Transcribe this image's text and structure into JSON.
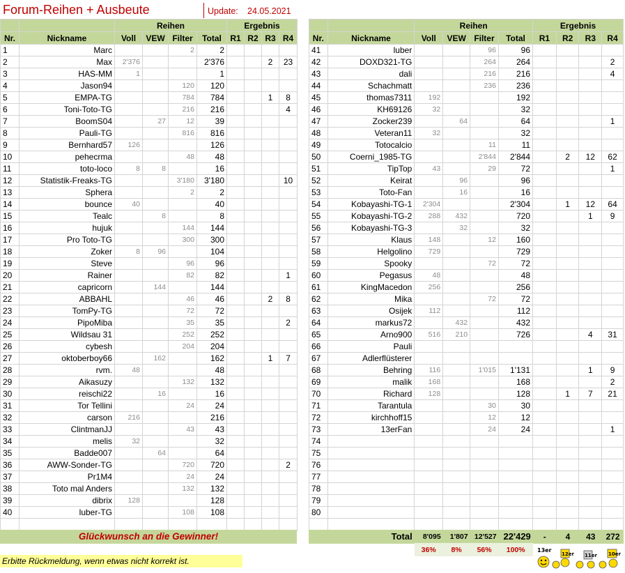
{
  "header": {
    "title": "Forum-Reihen + Ausbeute",
    "update_label": "Update:",
    "update_date": "24.05.2021"
  },
  "columns": {
    "group_reihen": "Reihen",
    "group_ergebnis": "Ergebnis",
    "nr": "Nr.",
    "nickname": "Nickname",
    "voll": "Voll",
    "vew": "VEW",
    "filter": "Filter",
    "total": "Total",
    "r1": "R1",
    "r2": "R2",
    "r3": "R3",
    "r4": "R4"
  },
  "rows": [
    {
      "nr": "1",
      "nick": "Marc",
      "voll": "",
      "vew": "",
      "filter": "2",
      "total": "2",
      "r1": "",
      "r2": "",
      "r3": "",
      "r4": ""
    },
    {
      "nr": "2",
      "nick": "Max",
      "voll": "2'376",
      "vew": "",
      "filter": "",
      "total": "2'376",
      "r1": "",
      "r2": "",
      "r3": "2",
      "r4": "23"
    },
    {
      "nr": "3",
      "nick": "HAS-MM",
      "voll": "1",
      "vew": "",
      "filter": "",
      "total": "1",
      "r1": "",
      "r2": "",
      "r3": "",
      "r4": ""
    },
    {
      "nr": "4",
      "nick": "Jason94",
      "voll": "",
      "vew": "",
      "filter": "120",
      "total": "120",
      "r1": "",
      "r2": "",
      "r3": "",
      "r4": ""
    },
    {
      "nr": "5",
      "nick": "EMPA-TG",
      "voll": "",
      "vew": "",
      "filter": "784",
      "total": "784",
      "r1": "",
      "r2": "",
      "r3": "1",
      "r4": "8"
    },
    {
      "nr": "6",
      "nick": "Toni-Toto-TG",
      "voll": "",
      "vew": "",
      "filter": "216",
      "total": "216",
      "r1": "",
      "r2": "",
      "r3": "",
      "r4": "4"
    },
    {
      "nr": "7",
      "nick": "BoomS04",
      "voll": "",
      "vew": "27",
      "filter": "12",
      "total": "39",
      "r1": "",
      "r2": "",
      "r3": "",
      "r4": ""
    },
    {
      "nr": "8",
      "nick": "Pauli-TG",
      "voll": "",
      "vew": "",
      "filter": "816",
      "total": "816",
      "r1": "",
      "r2": "",
      "r3": "",
      "r4": ""
    },
    {
      "nr": "9",
      "nick": "Bernhard57",
      "voll": "126",
      "vew": "",
      "filter": "",
      "total": "126",
      "r1": "",
      "r2": "",
      "r3": "",
      "r4": ""
    },
    {
      "nr": "10",
      "nick": "pehecrma",
      "voll": "",
      "vew": "",
      "filter": "48",
      "total": "48",
      "r1": "",
      "r2": "",
      "r3": "",
      "r4": ""
    },
    {
      "nr": "11",
      "nick": "toto-loco",
      "voll": "8",
      "vew": "8",
      "filter": "",
      "total": "16",
      "r1": "",
      "r2": "",
      "r3": "",
      "r4": ""
    },
    {
      "nr": "12",
      "nick": "Statistik-Freaks-TG",
      "voll": "",
      "vew": "",
      "filter": "3'180",
      "total": "3'180",
      "r1": "",
      "r2": "",
      "r3": "",
      "r4": "10"
    },
    {
      "nr": "13",
      "nick": "Sphera",
      "voll": "",
      "vew": "",
      "filter": "2",
      "total": "2",
      "r1": "",
      "r2": "",
      "r3": "",
      "r4": ""
    },
    {
      "nr": "14",
      "nick": "bounce",
      "voll": "40",
      "vew": "",
      "filter": "",
      "total": "40",
      "r1": "",
      "r2": "",
      "r3": "",
      "r4": ""
    },
    {
      "nr": "15",
      "nick": "Tealc",
      "voll": "",
      "vew": "8",
      "filter": "",
      "total": "8",
      "r1": "",
      "r2": "",
      "r3": "",
      "r4": ""
    },
    {
      "nr": "16",
      "nick": "hujuk",
      "voll": "",
      "vew": "",
      "filter": "144",
      "total": "144",
      "r1": "",
      "r2": "",
      "r3": "",
      "r4": ""
    },
    {
      "nr": "17",
      "nick": "Pro Toto-TG",
      "voll": "",
      "vew": "",
      "filter": "300",
      "total": "300",
      "r1": "",
      "r2": "",
      "r3": "",
      "r4": ""
    },
    {
      "nr": "18",
      "nick": "Zoker",
      "voll": "8",
      "vew": "96",
      "filter": "",
      "total": "104",
      "r1": "",
      "r2": "",
      "r3": "",
      "r4": ""
    },
    {
      "nr": "19",
      "nick": "Steve",
      "voll": "",
      "vew": "",
      "filter": "96",
      "total": "96",
      "r1": "",
      "r2": "",
      "r3": "",
      "r4": ""
    },
    {
      "nr": "20",
      "nick": "Rainer",
      "voll": "",
      "vew": "",
      "filter": "82",
      "total": "82",
      "r1": "",
      "r2": "",
      "r3": "",
      "r4": "1"
    },
    {
      "nr": "21",
      "nick": "capricorn",
      "voll": "",
      "vew": "144",
      "filter": "",
      "total": "144",
      "r1": "",
      "r2": "",
      "r3": "",
      "r4": ""
    },
    {
      "nr": "22",
      "nick": "ABBAHL",
      "voll": "",
      "vew": "",
      "filter": "46",
      "total": "46",
      "r1": "",
      "r2": "",
      "r3": "2",
      "r4": "8"
    },
    {
      "nr": "23",
      "nick": "TomPy-TG",
      "voll": "",
      "vew": "",
      "filter": "72",
      "total": "72",
      "r1": "",
      "r2": "",
      "r3": "",
      "r4": ""
    },
    {
      "nr": "24",
      "nick": "PipoMiba",
      "voll": "",
      "vew": "",
      "filter": "35",
      "total": "35",
      "r1": "",
      "r2": "",
      "r3": "",
      "r4": "2"
    },
    {
      "nr": "25",
      "nick": "Wildsau 31",
      "voll": "",
      "vew": "",
      "filter": "252",
      "total": "252",
      "r1": "",
      "r2": "",
      "r3": "",
      "r4": ""
    },
    {
      "nr": "26",
      "nick": "cybesh",
      "voll": "",
      "vew": "",
      "filter": "204",
      "total": "204",
      "r1": "",
      "r2": "",
      "r3": "",
      "r4": ""
    },
    {
      "nr": "27",
      "nick": "oktoberboy66",
      "voll": "",
      "vew": "162",
      "filter": "",
      "total": "162",
      "r1": "",
      "r2": "",
      "r3": "1",
      "r4": "7"
    },
    {
      "nr": "28",
      "nick": "rvm.",
      "voll": "48",
      "vew": "",
      "filter": "",
      "total": "48",
      "r1": "",
      "r2": "",
      "r3": "",
      "r4": ""
    },
    {
      "nr": "29",
      "nick": "Aikasuzy",
      "voll": "",
      "vew": "",
      "filter": "132",
      "total": "132",
      "r1": "",
      "r2": "",
      "r3": "",
      "r4": ""
    },
    {
      "nr": "30",
      "nick": "reischi22",
      "voll": "",
      "vew": "16",
      "filter": "",
      "total": "16",
      "r1": "",
      "r2": "",
      "r3": "",
      "r4": ""
    },
    {
      "nr": "31",
      "nick": "Tor Tellini",
      "voll": "",
      "vew": "",
      "filter": "24",
      "total": "24",
      "r1": "",
      "r2": "",
      "r3": "",
      "r4": ""
    },
    {
      "nr": "32",
      "nick": "carson",
      "voll": "216",
      "vew": "",
      "filter": "",
      "total": "216",
      "r1": "",
      "r2": "",
      "r3": "",
      "r4": ""
    },
    {
      "nr": "33",
      "nick": "ClintmanJJ",
      "voll": "",
      "vew": "",
      "filter": "43",
      "total": "43",
      "r1": "",
      "r2": "",
      "r3": "",
      "r4": ""
    },
    {
      "nr": "34",
      "nick": "melis",
      "voll": "32",
      "vew": "",
      "filter": "",
      "total": "32",
      "r1": "",
      "r2": "",
      "r3": "",
      "r4": ""
    },
    {
      "nr": "35",
      "nick": "Badde007",
      "voll": "",
      "vew": "64",
      "filter": "",
      "total": "64",
      "r1": "",
      "r2": "",
      "r3": "",
      "r4": ""
    },
    {
      "nr": "36",
      "nick": "AWW-Sonder-TG",
      "voll": "",
      "vew": "",
      "filter": "720",
      "total": "720",
      "r1": "",
      "r2": "",
      "r3": "",
      "r4": "2"
    },
    {
      "nr": "37",
      "nick": "Pr1M4",
      "voll": "",
      "vew": "",
      "filter": "24",
      "total": "24",
      "r1": "",
      "r2": "",
      "r3": "",
      "r4": ""
    },
    {
      "nr": "38",
      "nick": "Toto mal Anders",
      "voll": "",
      "vew": "",
      "filter": "132",
      "total": "132",
      "r1": "",
      "r2": "",
      "r3": "",
      "r4": ""
    },
    {
      "nr": "39",
      "nick": "dibrix",
      "voll": "128",
      "vew": "",
      "filter": "",
      "total": "128",
      "r1": "",
      "r2": "",
      "r3": "",
      "r4": ""
    },
    {
      "nr": "40",
      "nick": "luber-TG",
      "voll": "",
      "vew": "",
      "filter": "108",
      "total": "108",
      "r1": "",
      "r2": "",
      "r3": "",
      "r4": ""
    },
    {
      "nr": "41",
      "nick": "luber",
      "voll": "",
      "vew": "",
      "filter": "96",
      "total": "96",
      "r1": "",
      "r2": "",
      "r3": "",
      "r4": ""
    },
    {
      "nr": "42",
      "nick": "DOXD321-TG",
      "voll": "",
      "vew": "",
      "filter": "264",
      "total": "264",
      "r1": "",
      "r2": "",
      "r3": "",
      "r4": "2"
    },
    {
      "nr": "43",
      "nick": "dali",
      "voll": "",
      "vew": "",
      "filter": "216",
      "total": "216",
      "r1": "",
      "r2": "",
      "r3": "",
      "r4": "4"
    },
    {
      "nr": "44",
      "nick": "Schachmatt",
      "voll": "",
      "vew": "",
      "filter": "236",
      "total": "236",
      "r1": "",
      "r2": "",
      "r3": "",
      "r4": ""
    },
    {
      "nr": "45",
      "nick": "thomas7311",
      "voll": "192",
      "vew": "",
      "filter": "",
      "total": "192",
      "r1": "",
      "r2": "",
      "r3": "",
      "r4": ""
    },
    {
      "nr": "46",
      "nick": "KH69126",
      "voll": "32",
      "vew": "",
      "filter": "",
      "total": "32",
      "r1": "",
      "r2": "",
      "r3": "",
      "r4": ""
    },
    {
      "nr": "47",
      "nick": "Zocker239",
      "voll": "",
      "vew": "64",
      "filter": "",
      "total": "64",
      "r1": "",
      "r2": "",
      "r3": "",
      "r4": "1"
    },
    {
      "nr": "48",
      "nick": "Veteran11",
      "voll": "32",
      "vew": "",
      "filter": "",
      "total": "32",
      "r1": "",
      "r2": "",
      "r3": "",
      "r4": ""
    },
    {
      "nr": "49",
      "nick": "Totocalcio",
      "voll": "",
      "vew": "",
      "filter": "11",
      "total": "11",
      "r1": "",
      "r2": "",
      "r3": "",
      "r4": ""
    },
    {
      "nr": "50",
      "nick": "Coerni_1985-TG",
      "voll": "",
      "vew": "",
      "filter": "2'844",
      "total": "2'844",
      "r1": "",
      "r2": "2",
      "r3": "12",
      "r4": "62"
    },
    {
      "nr": "51",
      "nick": "TipTop",
      "voll": "43",
      "vew": "",
      "filter": "29",
      "total": "72",
      "r1": "",
      "r2": "",
      "r3": "",
      "r4": "1"
    },
    {
      "nr": "52",
      "nick": "Keirat",
      "voll": "",
      "vew": "96",
      "filter": "",
      "total": "96",
      "r1": "",
      "r2": "",
      "r3": "",
      "r4": ""
    },
    {
      "nr": "53",
      "nick": "Toto-Fan",
      "voll": "",
      "vew": "16",
      "filter": "",
      "total": "16",
      "r1": "",
      "r2": "",
      "r3": "",
      "r4": ""
    },
    {
      "nr": "54",
      "nick": "Kobayashi-TG-1",
      "voll": "2'304",
      "vew": "",
      "filter": "",
      "total": "2'304",
      "r1": "",
      "r2": "1",
      "r3": "12",
      "r4": "64"
    },
    {
      "nr": "55",
      "nick": "Kobayashi-TG-2",
      "voll": "288",
      "vew": "432",
      "filter": "",
      "total": "720",
      "r1": "",
      "r2": "",
      "r3": "1",
      "r4": "9"
    },
    {
      "nr": "56",
      "nick": "Kobayashi-TG-3",
      "voll": "",
      "vew": "32",
      "filter": "",
      "total": "32",
      "r1": "",
      "r2": "",
      "r3": "",
      "r4": ""
    },
    {
      "nr": "57",
      "nick": "Klaus",
      "voll": "148",
      "vew": "",
      "filter": "12",
      "total": "160",
      "r1": "",
      "r2": "",
      "r3": "",
      "r4": ""
    },
    {
      "nr": "58",
      "nick": "Helgolino",
      "voll": "729",
      "vew": "",
      "filter": "",
      "total": "729",
      "r1": "",
      "r2": "",
      "r3": "",
      "r4": ""
    },
    {
      "nr": "59",
      "nick": "Spooky",
      "voll": "",
      "vew": "",
      "filter": "72",
      "total": "72",
      "r1": "",
      "r2": "",
      "r3": "",
      "r4": ""
    },
    {
      "nr": "60",
      "nick": "Pegasus",
      "voll": "48",
      "vew": "",
      "filter": "",
      "total": "48",
      "r1": "",
      "r2": "",
      "r3": "",
      "r4": ""
    },
    {
      "nr": "61",
      "nick": "KingMacedon",
      "voll": "256",
      "vew": "",
      "filter": "",
      "total": "256",
      "r1": "",
      "r2": "",
      "r3": "",
      "r4": ""
    },
    {
      "nr": "62",
      "nick": "Mika",
      "voll": "",
      "vew": "",
      "filter": "72",
      "total": "72",
      "r1": "",
      "r2": "",
      "r3": "",
      "r4": ""
    },
    {
      "nr": "63",
      "nick": "Osijek",
      "voll": "112",
      "vew": "",
      "filter": "",
      "total": "112",
      "r1": "",
      "r2": "",
      "r3": "",
      "r4": ""
    },
    {
      "nr": "64",
      "nick": "markus72",
      "voll": "",
      "vew": "432",
      "filter": "",
      "total": "432",
      "r1": "",
      "r2": "",
      "r3": "",
      "r4": ""
    },
    {
      "nr": "65",
      "nick": "Arno900",
      "voll": "516",
      "vew": "210",
      "filter": "",
      "total": "726",
      "r1": "",
      "r2": "",
      "r3": "4",
      "r4": "31"
    },
    {
      "nr": "66",
      "nick": "Pauli",
      "voll": "",
      "vew": "",
      "filter": "",
      "total": "",
      "r1": "",
      "r2": "",
      "r3": "",
      "r4": ""
    },
    {
      "nr": "67",
      "nick": "Adlerflüsterer",
      "voll": "",
      "vew": "",
      "filter": "",
      "total": "",
      "r1": "",
      "r2": "",
      "r3": "",
      "r4": ""
    },
    {
      "nr": "68",
      "nick": "Behring",
      "voll": "116",
      "vew": "",
      "filter": "1'015",
      "total": "1'131",
      "r1": "",
      "r2": "",
      "r3": "1",
      "r4": "9"
    },
    {
      "nr": "69",
      "nick": "malik",
      "voll": "168",
      "vew": "",
      "filter": "",
      "total": "168",
      "r1": "",
      "r2": "",
      "r3": "",
      "r4": "2"
    },
    {
      "nr": "70",
      "nick": "Richard",
      "voll": "128",
      "vew": "",
      "filter": "",
      "total": "128",
      "r1": "",
      "r2": "1",
      "r3": "7",
      "r4": "21"
    },
    {
      "nr": "71",
      "nick": "Tarantula",
      "voll": "",
      "vew": "",
      "filter": "30",
      "total": "30",
      "r1": "",
      "r2": "",
      "r3": "",
      "r4": ""
    },
    {
      "nr": "72",
      "nick": "kirchhoff15",
      "voll": "",
      "vew": "",
      "filter": "12",
      "total": "12",
      "r1": "",
      "r2": "",
      "r3": "",
      "r4": ""
    },
    {
      "nr": "73",
      "nick": "13erFan",
      "voll": "",
      "vew": "",
      "filter": "24",
      "total": "24",
      "r1": "",
      "r2": "",
      "r3": "",
      "r4": "1"
    },
    {
      "nr": "74",
      "nick": "",
      "voll": "",
      "vew": "",
      "filter": "",
      "total": "",
      "r1": "",
      "r2": "",
      "r3": "",
      "r4": ""
    },
    {
      "nr": "75",
      "nick": "",
      "voll": "",
      "vew": "",
      "filter": "",
      "total": "",
      "r1": "",
      "r2": "",
      "r3": "",
      "r4": ""
    },
    {
      "nr": "76",
      "nick": "",
      "voll": "",
      "vew": "",
      "filter": "",
      "total": "",
      "r1": "",
      "r2": "",
      "r3": "",
      "r4": ""
    },
    {
      "nr": "77",
      "nick": "",
      "voll": "",
      "vew": "",
      "filter": "",
      "total": "",
      "r1": "",
      "r2": "",
      "r3": "",
      "r4": ""
    },
    {
      "nr": "78",
      "nick": "",
      "voll": "",
      "vew": "",
      "filter": "",
      "total": "",
      "r1": "",
      "r2": "",
      "r3": "",
      "r4": ""
    },
    {
      "nr": "79",
      "nick": "",
      "voll": "",
      "vew": "",
      "filter": "",
      "total": "",
      "r1": "",
      "r2": "",
      "r3": "",
      "r4": ""
    },
    {
      "nr": "80",
      "nick": "",
      "voll": "",
      "vew": "",
      "filter": "",
      "total": "",
      "r1": "",
      "r2": "",
      "r3": "",
      "r4": ""
    }
  ],
  "footer": {
    "congrats": "Glückwunsch an die Gewinner!",
    "total_label": "Total",
    "totals": {
      "voll": "8'095",
      "vew": "1'807",
      "filter": "12'527",
      "total": "22'429",
      "r1": "-",
      "r2": "4",
      "r3": "43",
      "r4": "272"
    },
    "percents": {
      "voll": "36%",
      "vew": "8%",
      "filter": "56%",
      "total": "100%"
    },
    "feedback": "Erbitte Rückmeldung, wenn etwas nicht korrekt ist.",
    "smiley_labels": [
      "13er",
      "12er",
      "11er",
      "10er"
    ]
  },
  "colors": {
    "header_green": "#c4d79b",
    "title_red": "#c00000",
    "feedback_yellow": "#ffff99",
    "grey_text": "#8c8c8c"
  }
}
